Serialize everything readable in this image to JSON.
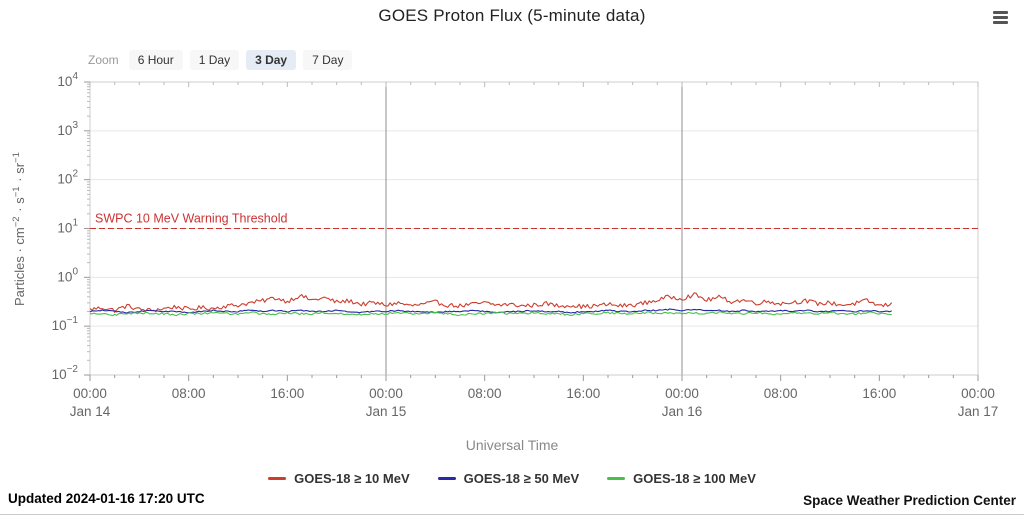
{
  "page": {
    "title": "GOES Proton Flux (5-minute data)",
    "updated": "Updated 2024-01-16 17:20 UTC",
    "credit": "Space Weather Prediction Center"
  },
  "toolbar": {
    "zoom_label": "Zoom",
    "buttons": [
      {
        "label": "6 Hour",
        "selected": false
      },
      {
        "label": "1 Day",
        "selected": false
      },
      {
        "label": "3 Day",
        "selected": true
      },
      {
        "label": "7 Day",
        "selected": false
      }
    ]
  },
  "chart_data": {
    "type": "line",
    "title": "GOES Proton Flux (5-minute data)",
    "xlabel": "Universal Time",
    "ylabel": "Particles · cm⁻² · s⁻¹ · sr⁻¹",
    "ylabel_parts": [
      {
        "t": "Particles · cm"
      },
      {
        "sup": "−2"
      },
      {
        "t": " · s"
      },
      {
        "sup": "−1"
      },
      {
        "t": " · sr"
      },
      {
        "sup": "−1"
      }
    ],
    "y_scale": "log",
    "ylim": [
      0.01,
      10000
    ],
    "y_tick_exponents": [
      4,
      3,
      2,
      1,
      0,
      -1,
      -2
    ],
    "x_range_hours": [
      0,
      72
    ],
    "x_ticks": [
      {
        "hour": 0,
        "time": "00:00",
        "day": "Jan 14"
      },
      {
        "hour": 8,
        "time": "08:00"
      },
      {
        "hour": 16,
        "time": "16:00"
      },
      {
        "hour": 24,
        "time": "00:00",
        "day": "Jan 15"
      },
      {
        "hour": 32,
        "time": "08:00"
      },
      {
        "hour": 40,
        "time": "16:00"
      },
      {
        "hour": 48,
        "time": "00:00",
        "day": "Jan 16"
      },
      {
        "hour": 56,
        "time": "08:00"
      },
      {
        "hour": 64,
        "time": "16:00"
      },
      {
        "hour": 72,
        "time": "00:00",
        "day": "Jan 17"
      }
    ],
    "day_boundaries_hours": [
      24,
      48
    ],
    "threshold": {
      "label": "SWPC 10 MeV Warning Threshold",
      "value": 10,
      "color": "#cc3333"
    },
    "grid": true,
    "legend_position": "bottom",
    "x_step_hours": 1,
    "series": [
      {
        "name": "GOES-18 ≥ 10 MeV",
        "color": "#cc3d2e",
        "jitter_log10": 0.045,
        "values": [
          0.22,
          0.24,
          0.21,
          0.26,
          0.22,
          0.21,
          0.23,
          0.25,
          0.22,
          0.24,
          0.23,
          0.26,
          0.27,
          0.3,
          0.33,
          0.38,
          0.32,
          0.42,
          0.34,
          0.38,
          0.31,
          0.33,
          0.28,
          0.3,
          0.27,
          0.3,
          0.26,
          0.28,
          0.31,
          0.27,
          0.26,
          0.28,
          0.3,
          0.27,
          0.28,
          0.26,
          0.27,
          0.29,
          0.26,
          0.27,
          0.25,
          0.26,
          0.28,
          0.26,
          0.27,
          0.3,
          0.34,
          0.4,
          0.37,
          0.44,
          0.34,
          0.39,
          0.32,
          0.34,
          0.3,
          0.32,
          0.29,
          0.31,
          0.33,
          0.29,
          0.3,
          0.27,
          0.29,
          0.33,
          0.26,
          0.28
        ]
      },
      {
        "name": "GOES-18 ≥ 50 MeV",
        "color": "#2828a8",
        "jitter_log10": 0.012,
        "values": [
          0.2,
          0.21,
          0.2,
          0.19,
          0.2,
          0.21,
          0.2,
          0.2,
          0.19,
          0.2,
          0.21,
          0.2,
          0.2,
          0.21,
          0.2,
          0.21,
          0.2,
          0.21,
          0.2,
          0.2,
          0.21,
          0.2,
          0.19,
          0.2,
          0.2,
          0.21,
          0.2,
          0.2,
          0.19,
          0.2,
          0.2,
          0.21,
          0.2,
          0.19,
          0.2,
          0.2,
          0.21,
          0.2,
          0.2,
          0.19,
          0.2,
          0.2,
          0.21,
          0.2,
          0.2,
          0.21,
          0.21,
          0.22,
          0.21,
          0.22,
          0.21,
          0.21,
          0.2,
          0.21,
          0.2,
          0.2,
          0.21,
          0.2,
          0.21,
          0.2,
          0.2,
          0.21,
          0.2,
          0.21,
          0.2,
          0.2
        ]
      },
      {
        "name": "GOES-18 ≥ 100 MeV",
        "color": "#47c247",
        "jitter_log10": 0.02,
        "values": [
          0.18,
          0.18,
          0.17,
          0.18,
          0.19,
          0.18,
          0.18,
          0.17,
          0.18,
          0.18,
          0.19,
          0.18,
          0.18,
          0.19,
          0.18,
          0.18,
          0.19,
          0.18,
          0.18,
          0.19,
          0.18,
          0.18,
          0.17,
          0.18,
          0.18,
          0.19,
          0.18,
          0.18,
          0.19,
          0.18,
          0.17,
          0.18,
          0.18,
          0.19,
          0.18,
          0.18,
          0.19,
          0.18,
          0.18,
          0.17,
          0.18,
          0.18,
          0.19,
          0.18,
          0.18,
          0.19,
          0.18,
          0.19,
          0.18,
          0.19,
          0.18,
          0.19,
          0.18,
          0.18,
          0.19,
          0.18,
          0.18,
          0.19,
          0.18,
          0.18,
          0.19,
          0.18,
          0.18,
          0.19,
          0.18,
          0.18
        ]
      }
    ]
  }
}
